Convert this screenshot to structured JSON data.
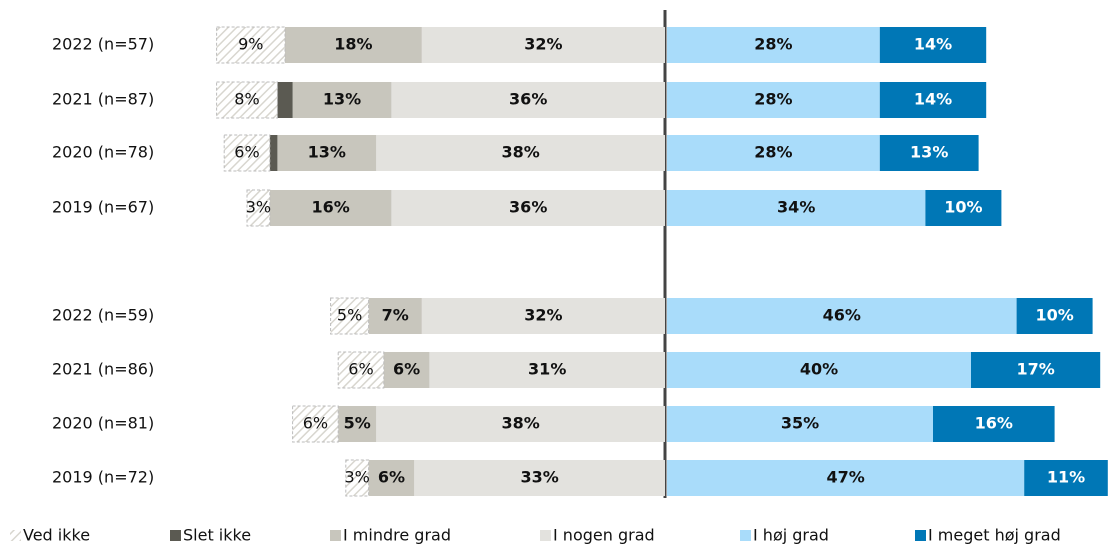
{
  "chart_data": {
    "type": "diverging_bar",
    "categories": [
      "2022 (n=57)",
      "2021 (n=87)",
      "2020 (n=78)",
      "2019 (n=67)",
      "2022 (n=59)",
      "2021 (n=86)",
      "2020 (n=81)",
      "2019 (n=72)"
    ],
    "series": [
      {
        "name": "Ved ikke",
        "color": "#ffffff",
        "values": [
          9,
          8,
          6,
          3,
          5,
          6,
          6,
          3
        ],
        "value_labels": [
          "9%",
          "8%",
          "6%",
          "3%",
          "5%",
          "6%",
          "6%",
          "3%"
        ]
      },
      {
        "name": "Slet ikke",
        "color": "#5b5a52",
        "values": [
          0,
          2,
          1,
          0,
          0,
          0,
          0,
          0
        ]
      },
      {
        "name": "I mindre grad",
        "color": "#c8c6bd",
        "values": [
          18,
          13,
          13,
          16,
          7,
          6,
          5,
          6
        ],
        "value_labels": [
          "18%",
          "13%",
          "13%",
          "16%",
          "7%",
          "6%",
          "5%",
          "6%"
        ]
      },
      {
        "name": "I nogen grad",
        "color": "#e3e2de",
        "values": [
          32,
          36,
          38,
          36,
          32,
          31,
          38,
          33
        ],
        "value_labels": [
          "32%",
          "36%",
          "38%",
          "36%",
          "32%",
          "31%",
          "38%",
          "33%"
        ]
      },
      {
        "name": "I høj grad",
        "color": "#a9dcfa",
        "values": [
          28,
          28,
          28,
          34,
          46,
          40,
          35,
          47
        ],
        "value_labels": [
          "28%",
          "28%",
          "28%",
          "34%",
          "46%",
          "40%",
          "35%",
          "47%"
        ]
      },
      {
        "name": "I meget høj grad",
        "color": "#0077b6",
        "values": [
          14,
          14,
          13,
          10,
          10,
          17,
          16,
          11
        ],
        "value_labels": [
          "14%",
          "14%",
          "13%",
          "10%",
          "10%",
          "17%",
          "16%",
          "11%"
        ]
      }
    ]
  }
}
